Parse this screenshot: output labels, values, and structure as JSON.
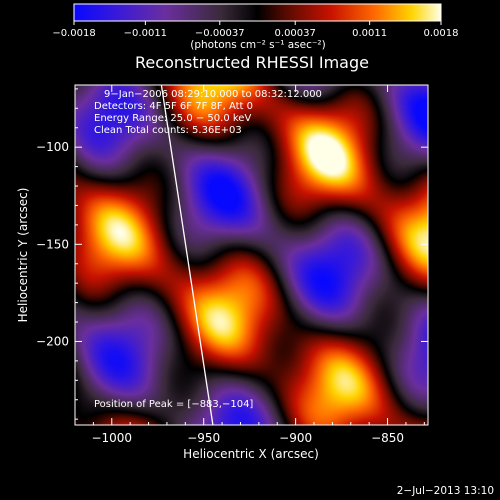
{
  "chart_data": {
    "type": "heatmap",
    "title": "Reconstructed RHESSI Image",
    "xlabel": "Heliocentric X (arcsec)",
    "ylabel": "Heliocentric Y (arcsec)",
    "xlim": [
      -1020,
      -828
    ],
    "ylim": [
      -243,
      -68
    ],
    "x_ticks": [
      -1000,
      -950,
      -900,
      -850
    ],
    "y_ticks": [
      -100,
      -150,
      -200
    ],
    "x_tick_labels": [
      "−1000",
      "−950",
      "−900",
      "−850"
    ],
    "y_tick_labels": [
      "−100",
      "−150",
      "−200"
    ],
    "colorbar": {
      "range": [
        -0.0018,
        0.0018
      ],
      "ticks": [
        -0.0018,
        -0.0011,
        -0.00037,
        0.00037,
        0.0011,
        0.0018
      ],
      "tick_labels": [
        "−0.0018",
        "−0.0011",
        "−0.00037",
        "0.00037",
        "0.0011",
        "0.0018"
      ],
      "unit_label": "(photons cm⁻² s⁻¹ asec⁻²)"
    },
    "annotations": [
      "9−Jan−2006 08:29:10.000 to 08:32:12.000",
      "Detectors: 4F 5F 6F 7F 8F, Att 0",
      "Energy Range: 25.0 − 50.0 keV",
      "Clean      Total counts: 5.36E+03"
    ],
    "peak_label": "Position of Peak = [−883,−104]",
    "peak": [
      -883,
      -104
    ],
    "limb_line": [
      [
        -973,
        -68
      ],
      [
        -945,
        -243
      ]
    ],
    "grid": false
  },
  "footer": {
    "timestamp": "2−Jul−2013 13:10"
  },
  "colors": {
    "background": "#000000",
    "text": "#ffffff"
  }
}
